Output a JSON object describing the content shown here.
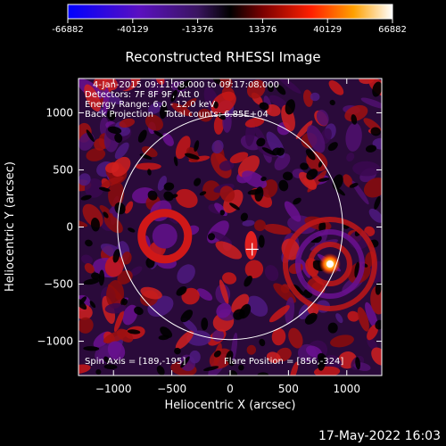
{
  "chart_data": {
    "type": "heatmap",
    "title": "Reconstructed RHESSI Image",
    "xlabel": "Heliocentric X (arcsec)",
    "ylabel": "Heliocentric Y (arcsec)",
    "xlim": [
      -1300,
      1300
    ],
    "ylim": [
      -1300,
      1300
    ],
    "xticks": [
      -1000,
      -500,
      0,
      500,
      1000
    ],
    "yticks": [
      -1000,
      -500,
      0,
      500,
      1000
    ],
    "colorbar": {
      "range": [
        -66882,
        66882
      ],
      "ticks": [
        -66882,
        -40129,
        -13376,
        13376,
        40129,
        66882
      ],
      "tick_labels": [
        "-66882",
        "-40129",
        "-13376",
        "13376",
        "40129",
        "66882"
      ]
    },
    "annotations": [
      "4-Jan-2015 09:11:08.000 to 09:17:08.000",
      "Detectors: 7F 8F 9F, Att 0",
      "Energy Range: 6.0 - 12.0 keV",
      "Back Projection    Total counts: 6.85E+04"
    ],
    "spin_axis": {
      "label": "Spin Axis = [189,-195]",
      "x": 189,
      "y": -195
    },
    "flare_position": {
      "label": "Flare Position = [856,-324]",
      "x": 856,
      "y": -324
    },
    "solar_limb_radius": 965,
    "colormap": [
      "#0000ff",
      "#6a0fb0",
      "#4a2070",
      "#000000",
      "#8c0000",
      "#ff1a00",
      "#ff9a00",
      "#ffffff"
    ]
  },
  "footer": {
    "date": "17-May-2022 16:03"
  }
}
